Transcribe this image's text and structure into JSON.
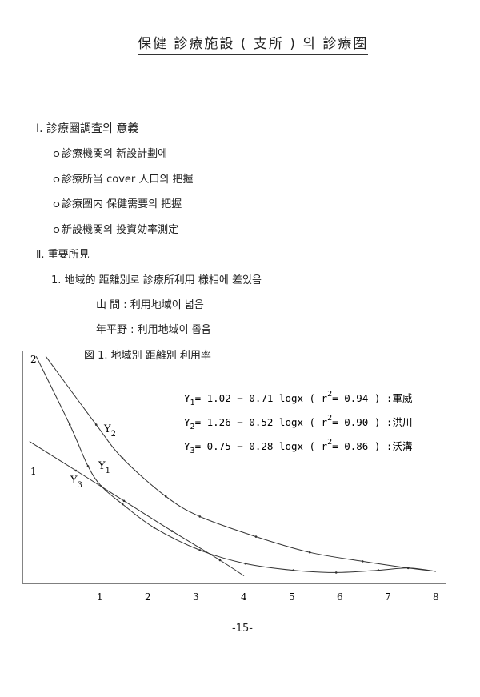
{
  "title": "保健 診療施設 ( 支所 ) 의  診療圈",
  "sections": [
    {
      "heading": "Ⅰ. 診療圈調査의  意義",
      "items": [
        "ｏ診療機関의  新設計劃에",
        "ｏ診療所当  cover  人口의  把握",
        "ｏ診療圈内  保健需要의  把握",
        "ｏ新設機関의  投資効率測定"
      ]
    },
    {
      "heading": "Ⅱ. 重要所見",
      "items": [
        "1. 地域的  距離別로  診療所利用  様相에  差있음"
      ],
      "sub": [
        "山  間 : 利用地域이  넓음",
        "年平野 : 利用地域이  좁음"
      ]
    }
  ],
  "figure_caption": "図 1. 地域別  距離別  利用率",
  "chart_data": {
    "type": "line",
    "title": "図 1. 地域別  距離別  利用率",
    "xlabel": "",
    "ylabel": "",
    "x_ticks": [
      "1",
      "2",
      "3",
      "4",
      "5",
      "6",
      "7",
      "8"
    ],
    "y_ticks": [
      "1",
      "2"
    ],
    "xlim": [
      -0.6,
      8.2
    ],
    "ylim": [
      0,
      2.1
    ],
    "grid": false,
    "equations": [
      {
        "lhs": "Y",
        "sub": "1",
        "rhs": "= 1.02 − 0.71 logx ( r",
        "r2": "= 0.94 ) :",
        "place": "軍威"
      },
      {
        "lhs": "Y",
        "sub": "2",
        "rhs": "= 1.26 − 0.52 logx ( r",
        "r2": "= 0.90 ) :",
        "place": "洪川"
      },
      {
        "lhs": "Y",
        "sub": "3",
        "rhs": "= 0.75 − 0.28 logx ( r",
        "r2": "= 0.86 ) :",
        "place": "沃溝"
      }
    ],
    "series": [
      {
        "name": "Y2",
        "points": [
          [
            -0.13,
            2.02
          ],
          [
            0.92,
            1.41
          ],
          [
            1.47,
            1.11
          ],
          [
            2.37,
            0.77
          ],
          [
            3.08,
            0.59
          ],
          [
            4.25,
            0.41
          ],
          [
            5.37,
            0.27
          ],
          [
            6.47,
            0.19
          ],
          [
            7.42,
            0.13
          ],
          [
            8.0,
            0.1
          ]
        ]
      },
      {
        "name": "Y1",
        "points": [
          [
            -0.33,
            2.02
          ],
          [
            0.37,
            1.41
          ],
          [
            0.75,
            1.04
          ],
          [
            1.03,
            0.86
          ],
          [
            1.47,
            0.7
          ],
          [
            2.13,
            0.49
          ],
          [
            3.08,
            0.29
          ],
          [
            4.03,
            0.17
          ],
          [
            5.03,
            0.11
          ],
          [
            5.92,
            0.09
          ],
          [
            6.8,
            0.11
          ],
          [
            7.42,
            0.13
          ],
          [
            8.0,
            0.1
          ]
        ]
      },
      {
        "name": "Y3",
        "points": [
          [
            -0.47,
            1.26
          ],
          [
            0.5,
            1.0
          ],
          [
            1.5,
            0.73
          ],
          [
            2.5,
            0.46
          ],
          [
            3.5,
            0.2
          ],
          [
            4.0,
            0.06
          ]
        ]
      }
    ],
    "curve_labels": [
      {
        "series": "Y2",
        "text": "Y",
        "sub": "2"
      },
      {
        "series": "Y1",
        "text": "Y",
        "sub": "1"
      },
      {
        "series": "Y3",
        "text": "Y",
        "sub": "3"
      }
    ]
  },
  "page_number": "-15-"
}
